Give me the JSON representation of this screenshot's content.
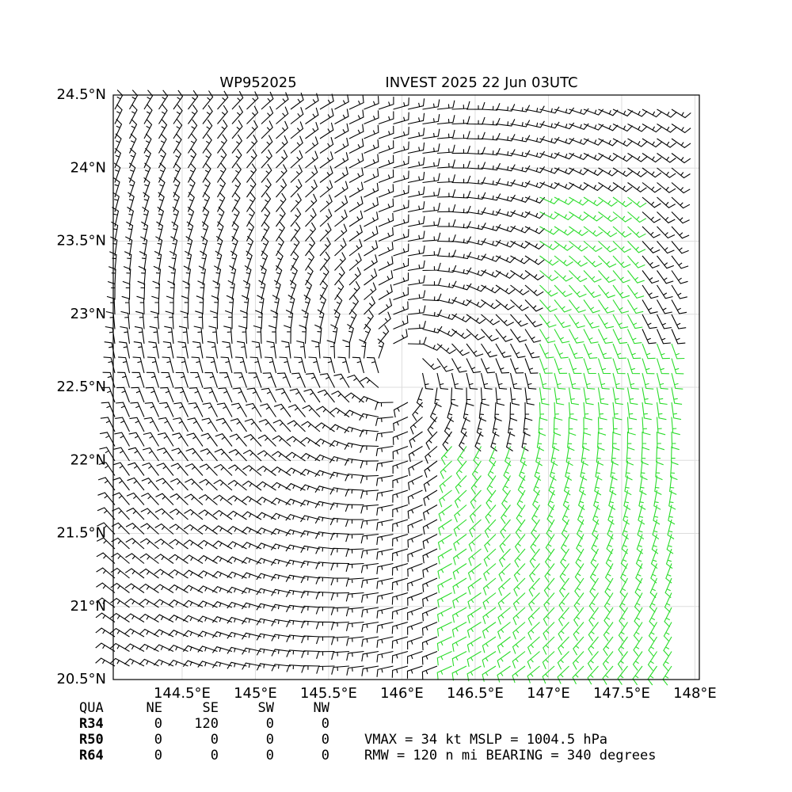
{
  "map": {
    "title_left": "WP952025",
    "title_right": "INVEST 2025 22 Jun 03UTC",
    "xlim": [
      144.03,
      148.03
    ],
    "ylim": [
      20.5,
      24.5
    ],
    "xticks": [
      {
        "value": 144.5,
        "label": "144.5°E"
      },
      {
        "value": 145,
        "label": "145°E"
      },
      {
        "value": 145.5,
        "label": "145.5°E"
      },
      {
        "value": 146,
        "label": "146°E"
      },
      {
        "value": 146.5,
        "label": "146.5°E"
      },
      {
        "value": 147,
        "label": "147°E"
      },
      {
        "value": 147.5,
        "label": "147.5°E"
      },
      {
        "value": 148,
        "label": "148°E"
      }
    ],
    "yticks": [
      {
        "value": 20.5,
        "label": "20.5°N"
      },
      {
        "value": 21,
        "label": "21°N"
      },
      {
        "value": 21.5,
        "label": "21.5°N"
      },
      {
        "value": 22,
        "label": "22°N"
      },
      {
        "value": 22.5,
        "label": "22.5°N"
      },
      {
        "value": 23,
        "label": "23°N"
      },
      {
        "value": 23.5,
        "label": "23.5°N"
      },
      {
        "value": 24,
        "label": "24°N"
      },
      {
        "value": 24.5,
        "label": "24.5°N"
      }
    ],
    "table": {
      "header": [
        "QUA",
        "NE",
        "SE",
        "SW",
        "NW"
      ],
      "rows": [
        [
          "R34",
          "0",
          "120",
          "0",
          "0"
        ],
        [
          "R50",
          "0",
          "0",
          "0",
          "0"
        ],
        [
          "R64",
          "0",
          "0",
          "0",
          "0"
        ]
      ]
    },
    "stats": [
      "VMAX =  34 kt MSLP = 1004.5 hPa",
      "RMW = 120 n mi BEARING = 340 degrees"
    ]
  }
}
